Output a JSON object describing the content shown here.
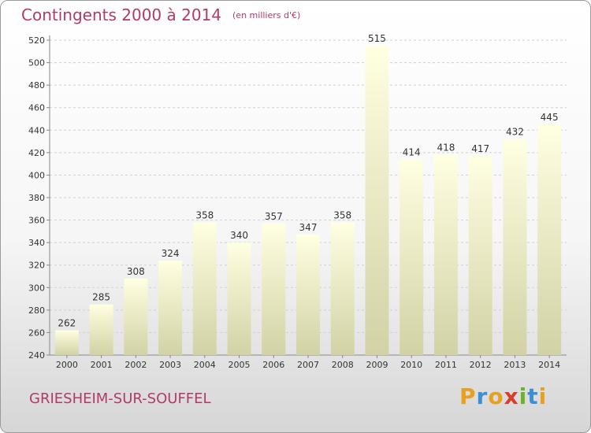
{
  "title": "Contingents 2000 à 2014",
  "unit": "(en milliers d'€)",
  "town": "GRIESHEIM-SUR-SOUFFEL",
  "logo": {
    "letters": [
      "P",
      "r",
      "o",
      "x",
      "i",
      "t",
      "i"
    ],
    "colors": [
      "#e8a020",
      "#3a8fd6",
      "#e8a020",
      "#d6402a",
      "#6ab42a",
      "#3a8fd6",
      "#e8a020"
    ]
  },
  "colors": {
    "bar_top": "#ffffe2",
    "bar_bottom": "#d2d2a6",
    "grid": "#d0d0d0",
    "title": "#b03a6a"
  },
  "chart_data": {
    "type": "bar",
    "categories": [
      "2000",
      "2001",
      "2002",
      "2003",
      "2004",
      "2005",
      "2006",
      "2007",
      "2008",
      "2009",
      "2010",
      "2011",
      "2012",
      "2013",
      "2014"
    ],
    "values": [
      262,
      285,
      308,
      324,
      358,
      340,
      357,
      347,
      358,
      515,
      414,
      418,
      417,
      432,
      445
    ],
    "ylim": [
      240,
      520
    ],
    "yticks": [
      240,
      260,
      280,
      300,
      320,
      340,
      360,
      380,
      400,
      420,
      440,
      460,
      480,
      500,
      520
    ],
    "grid": true,
    "xlabel": "",
    "ylabel": ""
  }
}
